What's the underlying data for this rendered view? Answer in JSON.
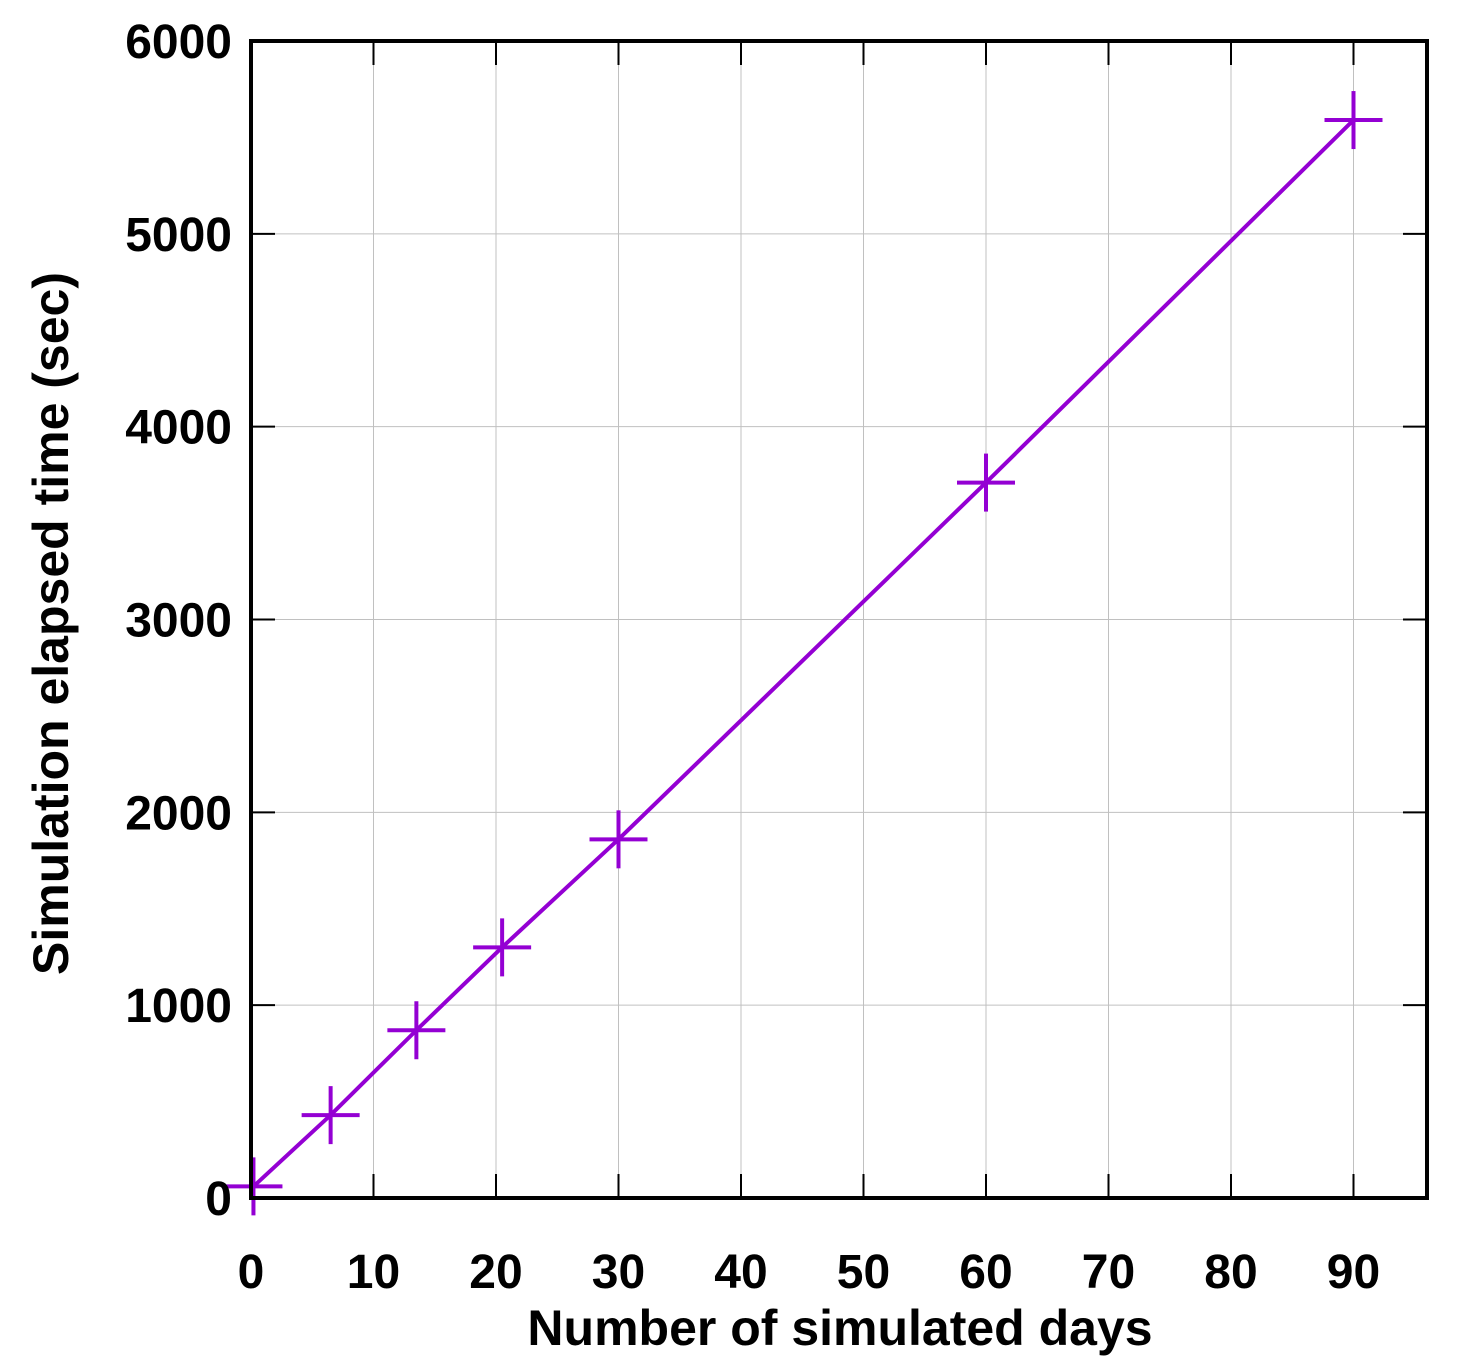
{
  "chart_data": {
    "type": "line",
    "title": "",
    "xlabel": "Number of simulated days",
    "ylabel": "Simulation elapsed time (sec)",
    "xlim": [
      0,
      96
    ],
    "ylim": [
      0,
      6000
    ],
    "x_ticks": [
      0,
      10,
      20,
      30,
      40,
      50,
      60,
      70,
      80,
      90
    ],
    "y_ticks": [
      0,
      1000,
      2000,
      3000,
      4000,
      5000,
      6000
    ],
    "x_tick_labels": [
      "0",
      "10",
      "20",
      "30",
      "40",
      "50",
      "60",
      "70",
      "80",
      "90"
    ],
    "y_tick_labels": [
      "0",
      "1000",
      "2000",
      "3000",
      "4000",
      "5000",
      "6000"
    ],
    "grid": true,
    "legend": "none",
    "series": [
      {
        "marker": "plus",
        "color": "#9400d3",
        "points": [
          {
            "x": 0.2,
            "y": 60
          },
          {
            "x": 6.5,
            "y": 430
          },
          {
            "x": 13.5,
            "y": 870
          },
          {
            "x": 20.5,
            "y": 1300
          },
          {
            "x": 30,
            "y": 1860
          },
          {
            "x": 60,
            "y": 3710
          },
          {
            "x": 90,
            "y": 5590
          }
        ]
      }
    ]
  }
}
